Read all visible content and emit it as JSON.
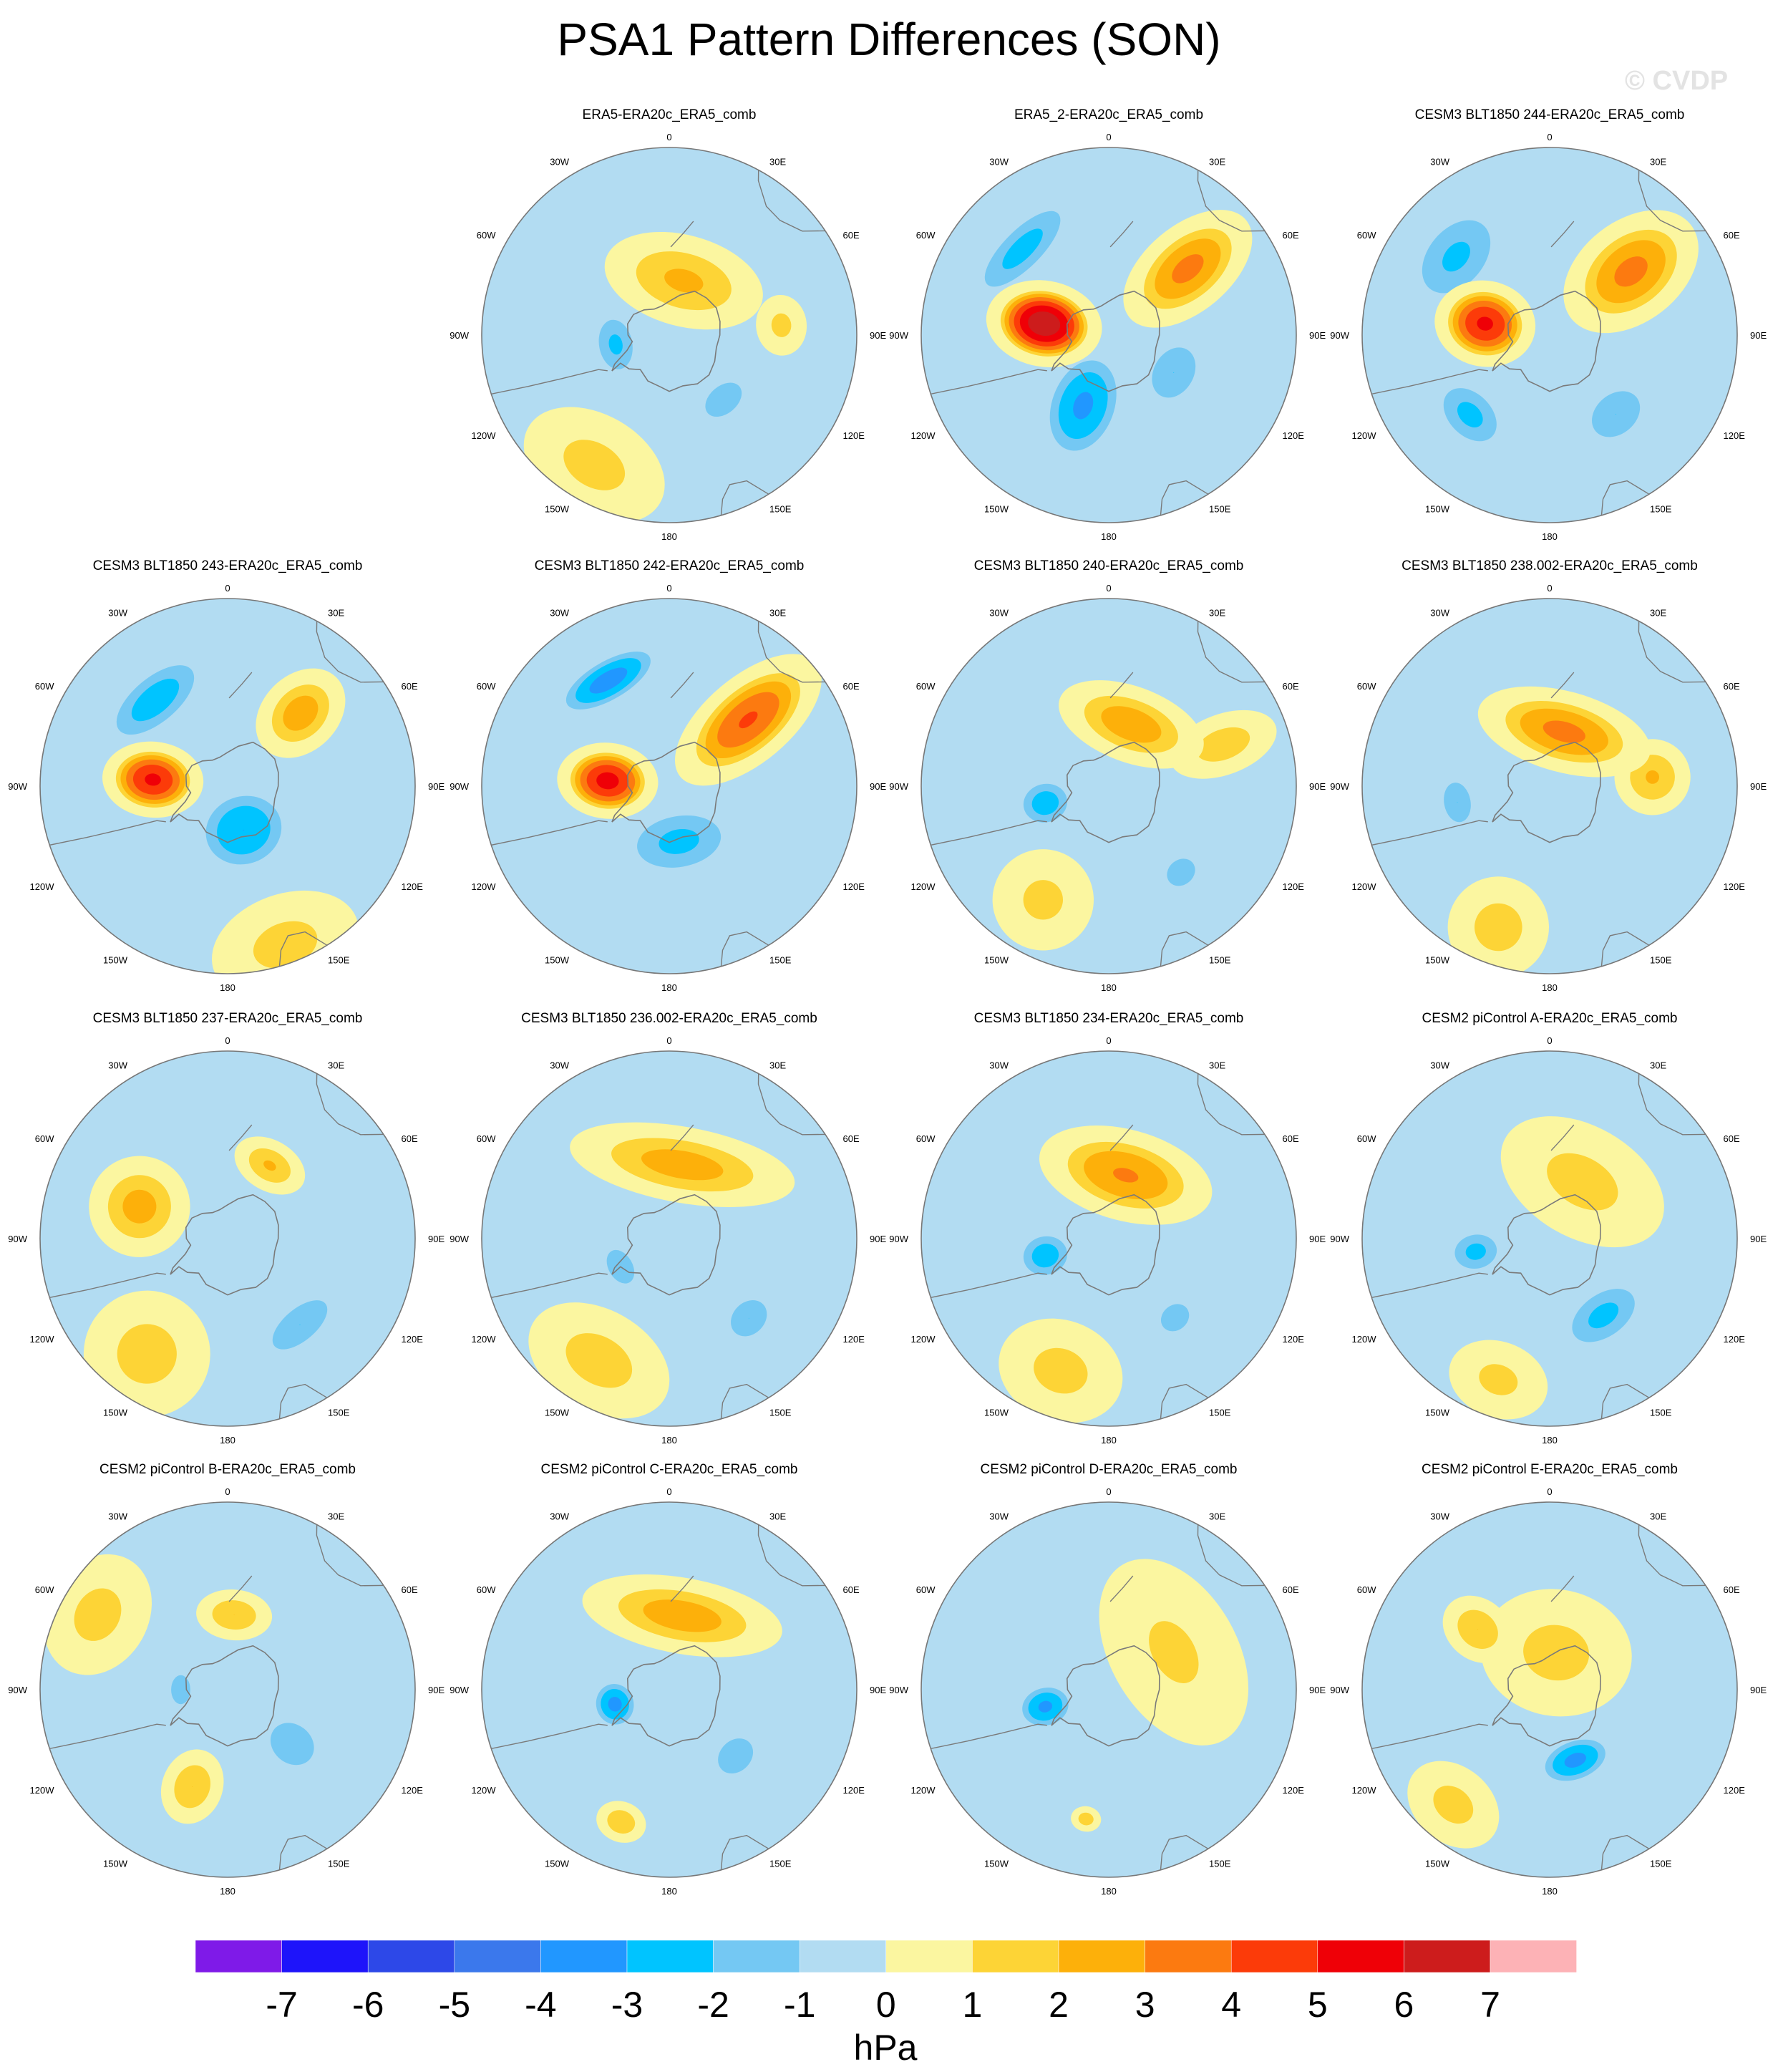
{
  "title": "PSA1 Pattern Differences (SON)",
  "watermark": "© CVDP",
  "colors": {
    "land_outline": "#7a7a7a",
    "panel_border": "#777777",
    "levels": [
      "#7f1ae8",
      "#1e14fa",
      "#2d48e8",
      "#3b78ec",
      "#2197ff",
      "#00c4ff",
      "#74c8f3",
      "#b2dcf2",
      "#fbf6a0",
      "#fdd436",
      "#fdb00a",
      "#fc7a10",
      "#fc3b09",
      "#ef0007",
      "#cd1c1c",
      "#fdb2b6"
    ]
  },
  "chart_data": {
    "type": "heatmap",
    "projection": "south-polar-stereographic",
    "variable": "PSA1 pattern difference",
    "units": "hPa",
    "colorbar": {
      "label": "hPa",
      "ticks": [
        "-7",
        "-6",
        "-5",
        "-4",
        "-3",
        "-2",
        "-1",
        "0",
        "1",
        "2",
        "3",
        "4",
        "5",
        "6",
        "7"
      ],
      "position": "bottom"
    },
    "longitude_labels": [
      "0",
      "30E",
      "60E",
      "90E",
      "120E",
      "150E",
      "180",
      "150W",
      "120W",
      "90W",
      "60W",
      "30W"
    ],
    "panels": [
      {
        "title": "ERA5-ERA20c_ERA5_comb",
        "anomalies": [
          {
            "lon": -80,
            "r": 0.29,
            "amp": -2.2,
            "sx": 0.18,
            "sy": 0.12,
            "rot": 0
          },
          {
            "lon": 40,
            "r": 0.45,
            "amp": -1.6,
            "sx": 0.18,
            "sy": 0.12,
            "rot": 0
          },
          {
            "lon": 95,
            "r": 0.6,
            "amp": 1.3,
            "sx": 0.12,
            "sy": 0.1,
            "rot": 0
          },
          {
            "lon": 165,
            "r": 0.3,
            "amp": 2.2,
            "sx": 0.32,
            "sy": 0.18,
            "rot": 0
          },
          {
            "lon": -30,
            "r": 0.8,
            "amp": 1.4,
            "sx": 0.3,
            "sy": 0.2,
            "rot": 0
          }
        ]
      },
      {
        "title": "ERA5_2-ERA20c_ERA5_comb",
        "anomalies": [
          {
            "lon": -100,
            "r": 0.35,
            "amp": 6.8,
            "sx": 0.17,
            "sy": 0.23,
            "rot": 0
          },
          {
            "lon": 130,
            "r": 0.55,
            "amp": 3.3,
            "sx": 0.17,
            "sy": 0.3,
            "rot": 0
          },
          {
            "lon": -20,
            "r": 0.4,
            "amp": -3.2,
            "sx": 0.2,
            "sy": 0.3,
            "rot": 0
          },
          {
            "lon": -135,
            "r": 0.65,
            "amp": -2.4,
            "sx": 0.35,
            "sy": 0.13,
            "rot": 0
          },
          {
            "lon": 60,
            "r": 0.4,
            "amp": -2.0,
            "sx": 0.2,
            "sy": 0.15,
            "rot": 0
          }
        ]
      },
      {
        "title": "CESM3 BLT1850 244-ERA20c_ERA5_comb",
        "anomalies": [
          {
            "lon": -100,
            "r": 0.35,
            "amp": 5.2,
            "sx": 0.17,
            "sy": 0.2,
            "rot": 0
          },
          {
            "lon": 128,
            "r": 0.55,
            "amp": 3.3,
            "sx": 0.2,
            "sy": 0.3,
            "rot": 0
          },
          {
            "lon": -45,
            "r": 0.6,
            "amp": -2.3,
            "sx": 0.22,
            "sy": 0.15,
            "rot": 0
          },
          {
            "lon": -130,
            "r": 0.65,
            "amp": -2.2,
            "sx": 0.3,
            "sy": 0.2,
            "rot": 0
          },
          {
            "lon": 40,
            "r": 0.55,
            "amp": -2.0,
            "sx": 0.2,
            "sy": 0.15,
            "rot": 0
          }
        ]
      },
      {
        "title": "CESM3 BLT1850 243-ERA20c_ERA5_comb",
        "anomalies": [
          {
            "lon": -95,
            "r": 0.4,
            "amp": 5.2,
            "sx": 0.15,
            "sy": 0.2,
            "rot": 0
          },
          {
            "lon": 20,
            "r": 0.25,
            "amp": -3.0,
            "sx": 0.25,
            "sy": 0.22,
            "rot": 0
          },
          {
            "lon": 135,
            "r": 0.55,
            "amp": 2.6,
            "sx": 0.15,
            "sy": 0.2,
            "rot": 0
          },
          {
            "lon": -140,
            "r": 0.6,
            "amp": -2.6,
            "sx": 0.32,
            "sy": 0.15,
            "rot": 0
          },
          {
            "lon": 20,
            "r": 0.9,
            "amp": 1.4,
            "sx": 0.3,
            "sy": 0.2,
            "rot": 0
          }
        ]
      },
      {
        "title": "CESM3 BLT1850 242-ERA20c_ERA5_comb",
        "anomalies": [
          {
            "lon": -95,
            "r": 0.33,
            "amp": 5.4,
            "sx": 0.15,
            "sy": 0.2,
            "rot": 0
          },
          {
            "lon": 130,
            "r": 0.55,
            "amp": 4.1,
            "sx": 0.17,
            "sy": 0.35,
            "rot": 0
          },
          {
            "lon": -150,
            "r": 0.65,
            "amp": -3.5,
            "sx": 0.3,
            "sy": 0.12,
            "rot": 0
          },
          {
            "lon": 10,
            "r": 0.3,
            "amp": -2.3,
            "sx": 0.3,
            "sy": 0.18,
            "rot": 0
          }
        ]
      },
      {
        "title": "CESM3 BLT1850 240-ERA20c_ERA5_comb",
        "anomalies": [
          {
            "lon": 160,
            "r": 0.35,
            "amp": 2.7,
            "sx": 0.3,
            "sy": 0.15,
            "rot": 0
          },
          {
            "lon": -75,
            "r": 0.35,
            "amp": -2.6,
            "sx": 0.13,
            "sy": 0.15,
            "rot": 0
          },
          {
            "lon": 40,
            "r": 0.6,
            "amp": -1.8,
            "sx": 0.12,
            "sy": 0.1,
            "rot": 0
          },
          {
            "lon": 110,
            "r": 0.65,
            "amp": 1.6,
            "sx": 0.12,
            "sy": 0.22,
            "rot": 0
          },
          {
            "lon": -30,
            "r": 0.7,
            "amp": 1.3,
            "sx": 0.2,
            "sy": 0.2,
            "rot": 0
          }
        ]
      },
      {
        "title": "CESM3 BLT1850 238.002-ERA20c_ERA5_comb",
        "anomalies": [
          {
            "lon": 165,
            "r": 0.3,
            "amp": 3.3,
            "sx": 0.35,
            "sy": 0.16,
            "rot": 0
          },
          {
            "lon": 95,
            "r": 0.55,
            "amp": 2.1,
            "sx": 0.15,
            "sy": 0.15,
            "rot": 0
          },
          {
            "lon": -80,
            "r": 0.5,
            "amp": -2.0,
            "sx": 0.15,
            "sy": 0.1,
            "rot": 0
          },
          {
            "lon": -20,
            "r": 0.8,
            "amp": 1.5,
            "sx": 0.2,
            "sy": 0.2,
            "rot": 0
          }
        ]
      },
      {
        "title": "CESM3 BLT1850 237-ERA20c_ERA5_comb",
        "anomalies": [
          {
            "lon": -110,
            "r": 0.5,
            "amp": 2.4,
            "sx": 0.2,
            "sy": 0.2,
            "rot": 0
          },
          {
            "lon": 150,
            "r": 0.45,
            "amp": 2.1,
            "sx": 0.15,
            "sy": 0.1,
            "rot": 0
          },
          {
            "lon": 40,
            "r": 0.6,
            "amp": -2.0,
            "sx": 0.25,
            "sy": 0.12,
            "rot": 0
          },
          {
            "lon": -35,
            "r": 0.75,
            "amp": 1.5,
            "sx": 0.25,
            "sy": 0.25,
            "rot": 0
          }
        ]
      },
      {
        "title": "CESM3 BLT1850 236.002-ERA20c_ERA5_comb",
        "anomalies": [
          {
            "lon": 170,
            "r": 0.4,
            "amp": 2.5,
            "sx": 0.45,
            "sy": 0.15,
            "rot": 0
          },
          {
            "lon": -60,
            "r": 0.3,
            "amp": -1.7,
            "sx": 0.15,
            "sy": 0.1,
            "rot": 0
          },
          {
            "lon": 45,
            "r": 0.6,
            "amp": -2.0,
            "sx": 0.15,
            "sy": 0.12,
            "rot": 0
          },
          {
            "lon": -30,
            "r": 0.75,
            "amp": 1.5,
            "sx": 0.3,
            "sy": 0.2,
            "rot": 0
          }
        ]
      },
      {
        "title": "CESM3 BLT1850 234-ERA20c_ERA5_comb",
        "anomalies": [
          {
            "lon": 165,
            "r": 0.35,
            "amp": 3.1,
            "sx": 0.35,
            "sy": 0.18,
            "rot": 0
          },
          {
            "lon": -75,
            "r": 0.35,
            "amp": -2.6,
            "sx": 0.13,
            "sy": 0.15,
            "rot": 0
          },
          {
            "lon": 40,
            "r": 0.55,
            "amp": -1.8,
            "sx": 0.12,
            "sy": 0.1,
            "rot": 0
          },
          {
            "lon": -20,
            "r": 0.75,
            "amp": 1.4,
            "sx": 0.25,
            "sy": 0.2,
            "rot": 0
          }
        ]
      },
      {
        "title": "CESM2 piControl A-ERA20c_ERA5_comb",
        "anomalies": [
          {
            "lon": 35,
            "r": 0.5,
            "amp": -2.3,
            "sx": 0.25,
            "sy": 0.15,
            "rot": 0
          },
          {
            "lon": -80,
            "r": 0.4,
            "amp": -2.3,
            "sx": 0.12,
            "sy": 0.15,
            "rot": 0
          },
          {
            "lon": 150,
            "r": 0.35,
            "amp": 1.4,
            "sx": 0.35,
            "sy": 0.22,
            "rot": 0
          },
          {
            "lon": -20,
            "r": 0.8,
            "amp": 1.3,
            "sx": 0.2,
            "sy": 0.15,
            "rot": 0
          }
        ]
      },
      {
        "title": "CESM2 piControl B-ERA20c_ERA5_comb",
        "anomalies": [
          {
            "lon": -20,
            "r": 0.55,
            "amp": 2.0,
            "sx": 0.12,
            "sy": 0.15,
            "rot": 0
          },
          {
            "lon": 50,
            "r": 0.45,
            "amp": -1.9,
            "sx": 0.15,
            "sy": 0.18,
            "rot": 0
          },
          {
            "lon": 175,
            "r": 0.4,
            "amp": 2.0,
            "sx": 0.15,
            "sy": 0.1,
            "rot": 0
          },
          {
            "lon": -90,
            "r": 0.25,
            "amp": -1.7,
            "sx": 0.12,
            "sy": 0.08,
            "rot": 0
          },
          {
            "lon": -120,
            "r": 0.8,
            "amp": 1.4,
            "sx": 0.25,
            "sy": 0.2,
            "rot": 0
          }
        ]
      },
      {
        "title": "CESM2 piControl C-ERA20c_ERA5_comb",
        "anomalies": [
          {
            "lon": -75,
            "r": 0.3,
            "amp": -3.3,
            "sx": 0.13,
            "sy": 0.12,
            "rot": 0
          },
          {
            "lon": 170,
            "r": 0.4,
            "amp": 2.6,
            "sx": 0.4,
            "sy": 0.15,
            "rot": 0
          },
          {
            "lon": 45,
            "r": 0.5,
            "amp": -1.9,
            "sx": 0.15,
            "sy": 0.12,
            "rot": 0
          },
          {
            "lon": -20,
            "r": 0.75,
            "amp": 1.9,
            "sx": 0.1,
            "sy": 0.08,
            "rot": 0
          }
        ]
      },
      {
        "title": "CESM2 piControl D-ERA20c_ERA5_comb",
        "anomalies": [
          {
            "lon": -75,
            "r": 0.35,
            "amp": -3.2,
            "sx": 0.12,
            "sy": 0.15,
            "rot": 0
          },
          {
            "lon": -10,
            "r": 0.7,
            "amp": 1.6,
            "sx": 0.06,
            "sy": 0.05,
            "rot": 0
          },
          {
            "lon": 120,
            "r": 0.4,
            "amp": 1.2,
            "sx": 0.4,
            "sy": 0.25,
            "rot": 0
          }
        ]
      },
      {
        "title": "CESM2 piControl E-ERA20c_ERA5_comb",
        "anomalies": [
          {
            "lon": 20,
            "r": 0.4,
            "amp": -3.3,
            "sx": 0.2,
            "sy": 0.12,
            "rot": 0
          },
          {
            "lon": -130,
            "r": 0.5,
            "amp": 2.0,
            "sx": 0.12,
            "sy": 0.15,
            "rot": 0
          },
          {
            "lon": 170,
            "r": 0.2,
            "amp": 1.4,
            "sx": 0.3,
            "sy": 0.25,
            "rot": 0
          },
          {
            "lon": -40,
            "r": 0.8,
            "amp": 1.4,
            "sx": 0.2,
            "sy": 0.15,
            "rot": 0
          }
        ]
      }
    ]
  }
}
